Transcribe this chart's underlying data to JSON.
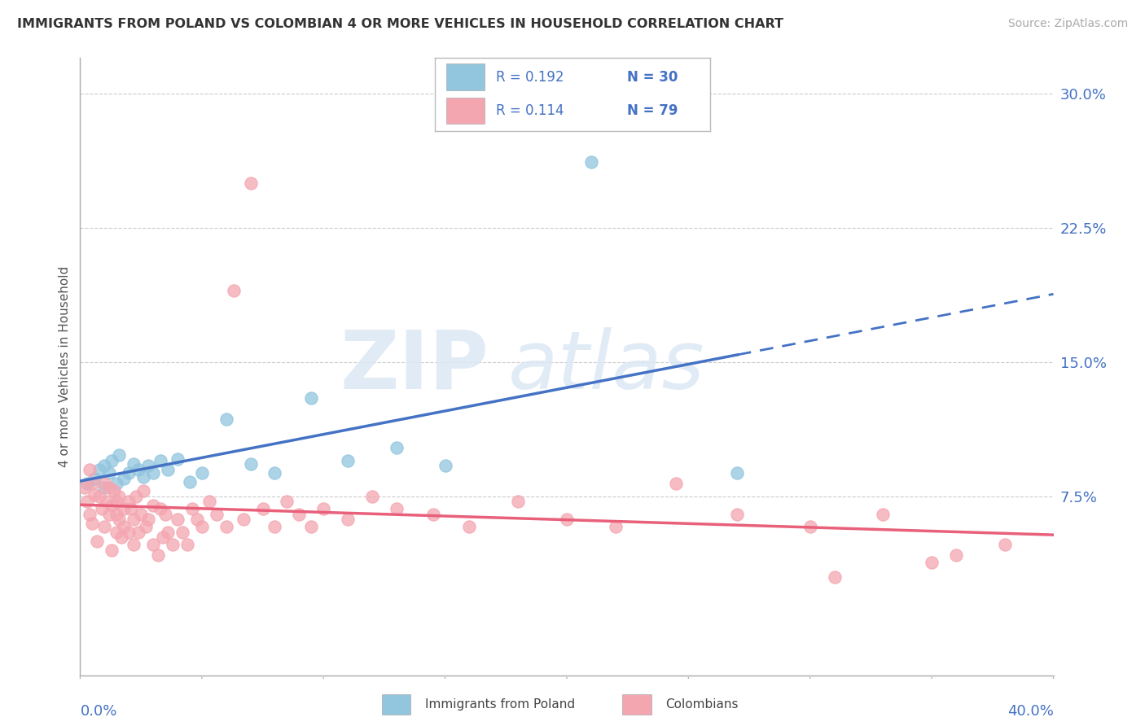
{
  "title": "IMMIGRANTS FROM POLAND VS COLOMBIAN 4 OR MORE VEHICLES IN HOUSEHOLD CORRELATION CHART",
  "source": "Source: ZipAtlas.com",
  "ylabel": "4 or more Vehicles in Household",
  "legend_R1": "R = 0.192",
  "legend_N1": "N = 30",
  "legend_R2": "R = 0.114",
  "legend_N2": "N = 79",
  "color_poland": "#92c5de",
  "color_colombia": "#f4a6b0",
  "color_blue": "#4472c4",
  "color_pink": "#e8607a",
  "watermark_zip": "ZIP",
  "watermark_atlas": "atlas",
  "xmin": 0.0,
  "xmax": 0.4,
  "ymin": -0.025,
  "ymax": 0.32,
  "ytick_vals": [
    0.075,
    0.15,
    0.225,
    0.3
  ],
  "ytick_labels": [
    "7.5%",
    "15.0%",
    "22.5%",
    "30.0%"
  ],
  "poland_x": [
    0.003,
    0.006,
    0.008,
    0.01,
    0.01,
    0.012,
    0.013,
    0.015,
    0.016,
    0.018,
    0.02,
    0.022,
    0.024,
    0.026,
    0.028,
    0.03,
    0.033,
    0.036,
    0.04,
    0.045,
    0.05,
    0.06,
    0.07,
    0.08,
    0.095,
    0.11,
    0.13,
    0.15,
    0.21,
    0.27
  ],
  "poland_y": [
    0.082,
    0.085,
    0.09,
    0.092,
    0.08,
    0.088,
    0.095,
    0.082,
    0.098,
    0.085,
    0.088,
    0.093,
    0.09,
    0.086,
    0.092,
    0.088,
    0.095,
    0.09,
    0.096,
    0.083,
    0.088,
    0.118,
    0.093,
    0.088,
    0.13,
    0.095,
    0.102,
    0.092,
    0.262,
    0.088
  ],
  "colombia_x": [
    0.002,
    0.003,
    0.004,
    0.004,
    0.005,
    0.005,
    0.006,
    0.007,
    0.008,
    0.009,
    0.01,
    0.01,
    0.011,
    0.012,
    0.012,
    0.013,
    0.013,
    0.014,
    0.015,
    0.015,
    0.015,
    0.016,
    0.016,
    0.017,
    0.018,
    0.018,
    0.02,
    0.02,
    0.021,
    0.022,
    0.022,
    0.023,
    0.024,
    0.025,
    0.026,
    0.027,
    0.028,
    0.03,
    0.03,
    0.032,
    0.033,
    0.034,
    0.035,
    0.036,
    0.038,
    0.04,
    0.042,
    0.044,
    0.046,
    0.048,
    0.05,
    0.053,
    0.056,
    0.06,
    0.063,
    0.067,
    0.07,
    0.075,
    0.08,
    0.085,
    0.09,
    0.095,
    0.1,
    0.11,
    0.12,
    0.13,
    0.145,
    0.16,
    0.18,
    0.2,
    0.22,
    0.245,
    0.27,
    0.3,
    0.33,
    0.36,
    0.38,
    0.35,
    0.31
  ],
  "colombia_y": [
    0.08,
    0.072,
    0.065,
    0.09,
    0.082,
    0.06,
    0.076,
    0.05,
    0.075,
    0.068,
    0.082,
    0.058,
    0.072,
    0.065,
    0.08,
    0.07,
    0.045,
    0.078,
    0.065,
    0.072,
    0.055,
    0.075,
    0.062,
    0.052,
    0.068,
    0.058,
    0.072,
    0.055,
    0.068,
    0.062,
    0.048,
    0.075,
    0.055,
    0.065,
    0.078,
    0.058,
    0.062,
    0.07,
    0.048,
    0.042,
    0.068,
    0.052,
    0.065,
    0.055,
    0.048,
    0.062,
    0.055,
    0.048,
    0.068,
    0.062,
    0.058,
    0.072,
    0.065,
    0.058,
    0.19,
    0.062,
    0.25,
    0.068,
    0.058,
    0.072,
    0.065,
    0.058,
    0.068,
    0.062,
    0.075,
    0.068,
    0.065,
    0.058,
    0.072,
    0.062,
    0.058,
    0.082,
    0.065,
    0.058,
    0.065,
    0.042,
    0.048,
    0.038,
    0.03
  ]
}
